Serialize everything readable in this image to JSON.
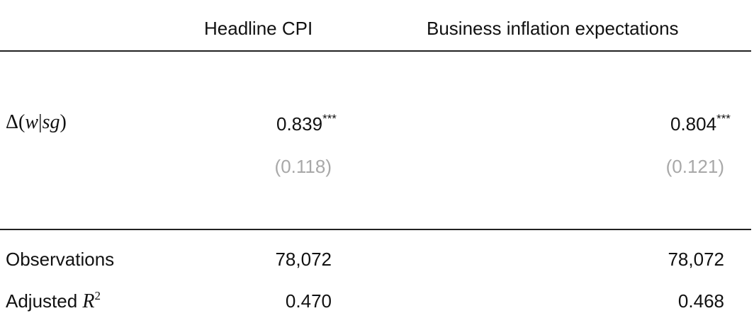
{
  "table": {
    "columns": [
      {
        "label": "Headline CPI"
      },
      {
        "label": "Business inflation expectations"
      }
    ],
    "main_row": {
      "var_symbol": "Δ",
      "var_open": "(",
      "var_w": "w",
      "var_bar": "|",
      "var_sg": "sg",
      "var_close": ")",
      "coefs": [
        "0.839",
        "0.804"
      ],
      "stars": [
        "***",
        "***"
      ],
      "std_errors": [
        "(0.118)",
        "(0.121)"
      ]
    },
    "stats": [
      {
        "label": "Observations",
        "values": [
          "78,072",
          "78,072"
        ]
      },
      {
        "label": "Adjusted",
        "math": "R",
        "superscript": "2",
        "values": [
          "0.470",
          "0.468"
        ]
      }
    ]
  }
}
